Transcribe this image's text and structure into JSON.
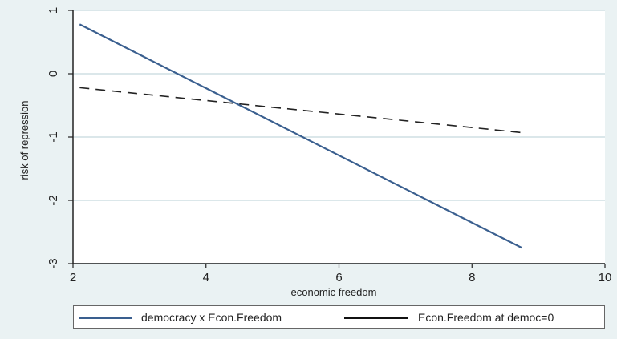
{
  "chart_data": {
    "type": "line",
    "title": "",
    "xlabel": "economic freedom",
    "ylabel": "risk of repression",
    "xlim": [
      2,
      10
    ],
    "ylim": [
      -3,
      1
    ],
    "xticks": [
      2,
      4,
      6,
      8,
      10
    ],
    "yticks": [
      -3,
      -2,
      -1,
      0,
      1
    ],
    "grid": true,
    "legend_position": "bottom",
    "series": [
      {
        "name": "democracy x Econ.Freedom",
        "color": "#3a5f8f",
        "style": "solid",
        "x": [
          2.1,
          8.75
        ],
        "y": [
          0.78,
          -2.75
        ]
      },
      {
        "name": "Econ.Freedom at democ=0",
        "color": "#222222",
        "style": "dashed",
        "x": [
          2.1,
          8.75
        ],
        "y": [
          -0.22,
          -0.93
        ]
      }
    ]
  }
}
